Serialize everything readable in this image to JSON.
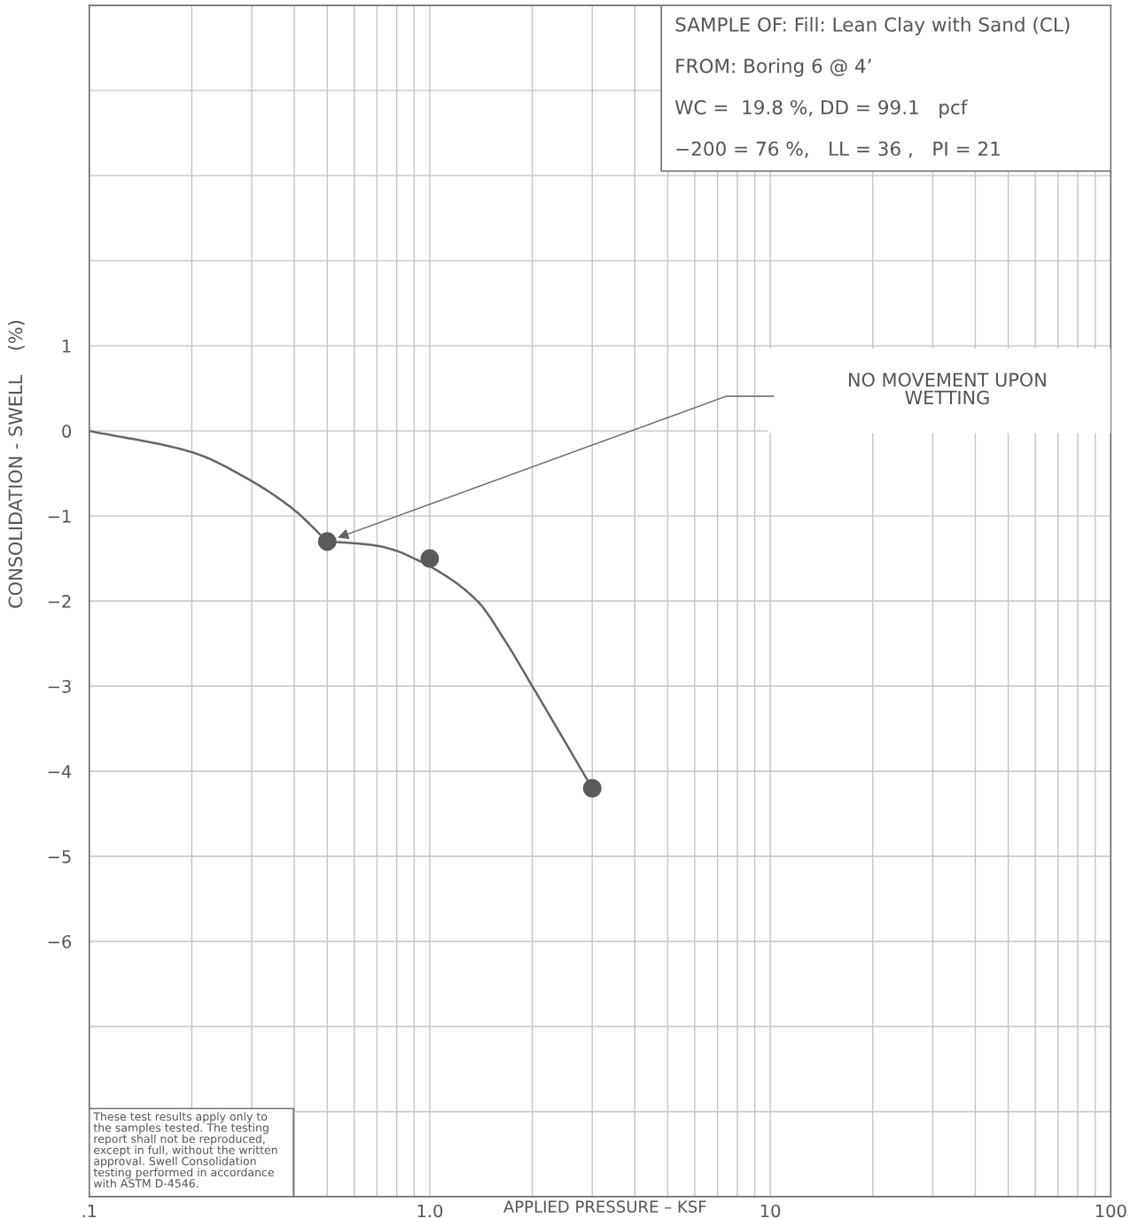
{
  "chart_data": {
    "type": "line",
    "xlabel": "APPLIED PRESSURE – KSF",
    "ylabel": "CONSOLIDATION - SWELL    (%)",
    "log": "x",
    "xlim": [
      0.1,
      100
    ],
    "xticks": [
      {
        "value": 0.1,
        "label": ".1"
      },
      {
        "value": 0.2,
        "label": null
      },
      {
        "value": 0.3,
        "label": null
      },
      {
        "value": 0.4,
        "label": null
      },
      {
        "value": 0.5,
        "label": null
      },
      {
        "value": 0.6,
        "label": null
      },
      {
        "value": 0.7,
        "label": null
      },
      {
        "value": 0.8,
        "label": null
      },
      {
        "value": 0.9,
        "label": null
      },
      {
        "value": 1,
        "label": "1.0"
      },
      {
        "value": 2,
        "label": null
      },
      {
        "value": 3,
        "label": null
      },
      {
        "value": 4,
        "label": null
      },
      {
        "value": 5,
        "label": null
      },
      {
        "value": 6,
        "label": null
      },
      {
        "value": 7,
        "label": null
      },
      {
        "value": 8,
        "label": null
      },
      {
        "value": 9,
        "label": null
      },
      10,
      {
        "value": 20,
        "label": null
      },
      {
        "value": 30,
        "label": null
      },
      {
        "value": 40,
        "label": null
      },
      {
        "value": 50,
        "label": null
      },
      {
        "value": 60,
        "label": null
      },
      {
        "value": 70,
        "label": null
      },
      {
        "value": 80,
        "label": null
      },
      {
        "value": 90,
        "label": null
      },
      100
    ],
    "ylim": [
      -9,
      5
    ],
    "yticks": [
      {
        "value": -9,
        "label": null
      },
      {
        "value": -8,
        "label": null
      },
      {
        "value": -7,
        "label": null
      },
      {
        "value": -6,
        "label": "−6"
      },
      {
        "value": -5,
        "label": "−5"
      },
      {
        "value": -4,
        "label": "−4"
      },
      {
        "value": -3,
        "label": "−3"
      },
      {
        "value": -2,
        "label": "−2"
      },
      {
        "value": -1,
        "label": "−1"
      },
      0,
      1,
      {
        "value": 2,
        "label": null
      },
      {
        "value": 3,
        "label": null
      },
      {
        "value": 4,
        "label": null
      },
      {
        "value": 5,
        "label": null
      }
    ],
    "grid": true,
    "series": [
      {
        "color": "#666666",
        "marker": "none",
        "line_style": "solid",
        "x": [
          0.1,
          0.2,
          0.3,
          0.4,
          0.5
        ],
        "values": [
          0,
          -0.25,
          -0.59,
          -0.93,
          -1.3
        ]
      },
      {
        "color": "#666666",
        "marker": "none",
        "line_style": "solid",
        "x": [
          0.5,
          0.6,
          0.7,
          0.8,
          0.9,
          1.0,
          1.38,
          1.66,
          2.0,
          3.0
        ],
        "values": [
          -1.3,
          -1.32,
          -1.35,
          -1.41,
          -1.5,
          -1.59,
          -2.0,
          -2.46,
          -3.0,
          -4.2
        ]
      },
      {
        "type": "scatter",
        "color": "#5a5a5a",
        "marker": "circle",
        "x": [
          0.5,
          1.0,
          3.0
        ],
        "values": [
          -1.3,
          -1.5,
          -4.2
        ]
      }
    ],
    "annotations": [
      "SAMPLE OF: Fill: Lean Clay with Sand (CL)",
      "FROM: Boring 6 @ 4’",
      "WC =  19.8 %, DD = 99.1   pcf",
      "−200 = 76 %,   LL = 36 ,   PI = 21",
      "NO MOVEMENT UPON\nWETTING",
      "These test results apply only to the samples tested. The testing report shall not be reproduced, except in full, without the written approval. Swell Consolidation testing performed in accordance with ASTM D-4546."
    ]
  }
}
